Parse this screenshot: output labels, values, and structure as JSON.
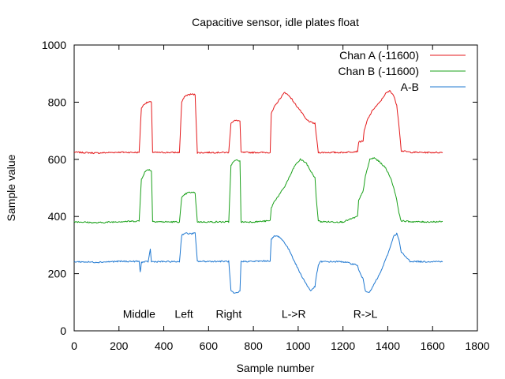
{
  "chart_data": {
    "type": "line",
    "title": "Capacitive sensor, idle plates float",
    "xlabel": "Sample number",
    "ylabel": "Sample value",
    "xlim": [
      0,
      1800
    ],
    "ylim": [
      0,
      1000
    ],
    "xticks": [
      0,
      200,
      400,
      600,
      800,
      1000,
      1200,
      1400,
      1600,
      1800
    ],
    "yticks": [
      0,
      200,
      400,
      600,
      800,
      1000
    ],
    "legend_position": "top-right",
    "grid": false,
    "annotations": [
      {
        "text": "Middle",
        "x": 290,
        "y": 45
      },
      {
        "text": "Left",
        "x": 490,
        "y": 45
      },
      {
        "text": "Right",
        "x": 690,
        "y": 45
      },
      {
        "text": "L->R",
        "x": 980,
        "y": 45
      },
      {
        "text": "R->L",
        "x": 1300,
        "y": 45
      }
    ],
    "series": [
      {
        "name": "Chan A (-11600)",
        "color": "#e41a1c",
        "x": [
          0,
          100,
          200,
          290,
          300,
          315,
          330,
          345,
          350,
          400,
          470,
          480,
          495,
          510,
          525,
          540,
          550,
          600,
          690,
          700,
          715,
          730,
          740,
          745,
          800,
          875,
          880,
          895,
          915,
          940,
          965,
          985,
          1010,
          1035,
          1055,
          1075,
          1080,
          1090,
          1100,
          1150,
          1200,
          1265,
          1270,
          1290,
          1295,
          1310,
          1335,
          1365,
          1390,
          1410,
          1425,
          1440,
          1450,
          1460,
          1500,
          1560,
          1645
        ],
        "y": [
          625,
          622,
          625,
          624,
          780,
          795,
          800,
          800,
          624,
          624,
          624,
          800,
          822,
          826,
          828,
          826,
          623,
          624,
          624,
          728,
          735,
          736,
          734,
          624,
          624,
          624,
          760,
          785,
          808,
          835,
          818,
          795,
          770,
          740,
          730,
          725,
          690,
          624,
          624,
          624,
          624,
          628,
          660,
          665,
          700,
          740,
          775,
          800,
          830,
          840,
          825,
          790,
          720,
          630,
          625,
          624,
          624
        ]
      },
      {
        "name": "Chan B (-11600)",
        "color": "#1ba11b",
        "x": [
          0,
          100,
          200,
          290,
          300,
          315,
          330,
          345,
          350,
          400,
          470,
          480,
          495,
          510,
          525,
          540,
          550,
          600,
          690,
          700,
          715,
          730,
          740,
          745,
          800,
          875,
          880,
          895,
          915,
          940,
          965,
          985,
          1010,
          1035,
          1055,
          1075,
          1080,
          1090,
          1100,
          1150,
          1200,
          1265,
          1270,
          1290,
          1300,
          1320,
          1340,
          1365,
          1390,
          1410,
          1425,
          1440,
          1450,
          1460,
          1500,
          1560,
          1645
        ],
        "y": [
          382,
          378,
          382,
          384,
          530,
          555,
          565,
          560,
          383,
          381,
          381,
          465,
          478,
          484,
          484,
          483,
          381,
          381,
          381,
          580,
          594,
          598,
          594,
          381,
          381,
          385,
          430,
          455,
          475,
          505,
          545,
          578,
          600,
          588,
          560,
          535,
          470,
          385,
          382,
          381,
          381,
          400,
          455,
          490,
          540,
          600,
          605,
          590,
          570,
          540,
          505,
          460,
          410,
          385,
          382,
          381,
          382
        ]
      },
      {
        "name": "A-B",
        "color": "#1f78d1",
        "x": [
          0,
          100,
          200,
          290,
          295,
          300,
          330,
          340,
          345,
          350,
          400,
          470,
          480,
          495,
          510,
          525,
          540,
          550,
          600,
          690,
          700,
          715,
          730,
          740,
          745,
          800,
          875,
          880,
          895,
          915,
          940,
          965,
          985,
          1010,
          1035,
          1055,
          1075,
          1080,
          1090,
          1100,
          1150,
          1200,
          1265,
          1270,
          1290,
          1300,
          1320,
          1340,
          1365,
          1390,
          1410,
          1425,
          1440,
          1450,
          1460,
          1500,
          1560,
          1645
        ],
        "y": [
          242,
          240,
          243,
          243,
          205,
          240,
          242,
          285,
          242,
          242,
          242,
          242,
          335,
          342,
          340,
          340,
          342,
          243,
          243,
          243,
          140,
          130,
          133,
          140,
          243,
          243,
          245,
          320,
          332,
          330,
          308,
          275,
          240,
          200,
          165,
          140,
          155,
          185,
          230,
          242,
          242,
          242,
          230,
          212,
          180,
          140,
          135,
          165,
          200,
          248,
          290,
          330,
          340,
          318,
          275,
          243,
          242,
          243
        ]
      }
    ]
  }
}
